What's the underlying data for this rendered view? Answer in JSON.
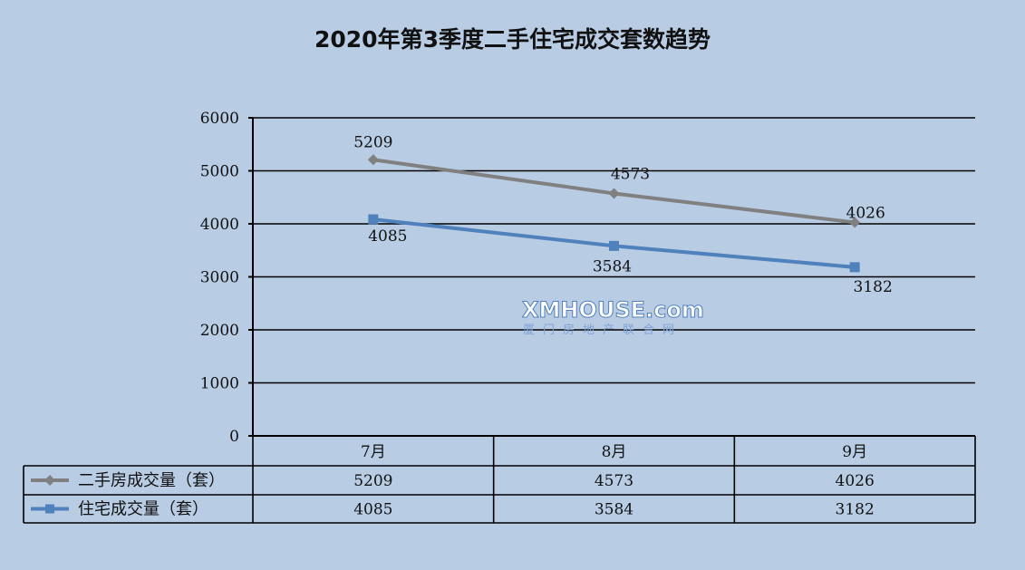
{
  "colors": {
    "background": "#b8cce4",
    "series_gray": "#808080",
    "series_blue": "#4f81bd"
  },
  "watermark": {
    "brand": "XMHOUSE.com",
    "subtitle": "厦门房地产联合网"
  },
  "chart_data": {
    "type": "line",
    "title": "2020年第3季度二手住宅成交套数趋势",
    "categories": [
      "7月",
      "8月",
      "9月"
    ],
    "ylim": [
      0,
      6000
    ],
    "yticks": [
      0,
      1000,
      2000,
      3000,
      4000,
      5000,
      6000
    ],
    "grid": true,
    "legend": "data-table-left",
    "series": [
      {
        "name": "二手房成交量（套）",
        "values": [
          5209,
          4573,
          4026
        ],
        "color": "#808080",
        "marker": "diamond"
      },
      {
        "name": "住宅成交量（套）",
        "values": [
          4085,
          3584,
          3182
        ],
        "color": "#4f81bd",
        "marker": "square"
      }
    ]
  }
}
